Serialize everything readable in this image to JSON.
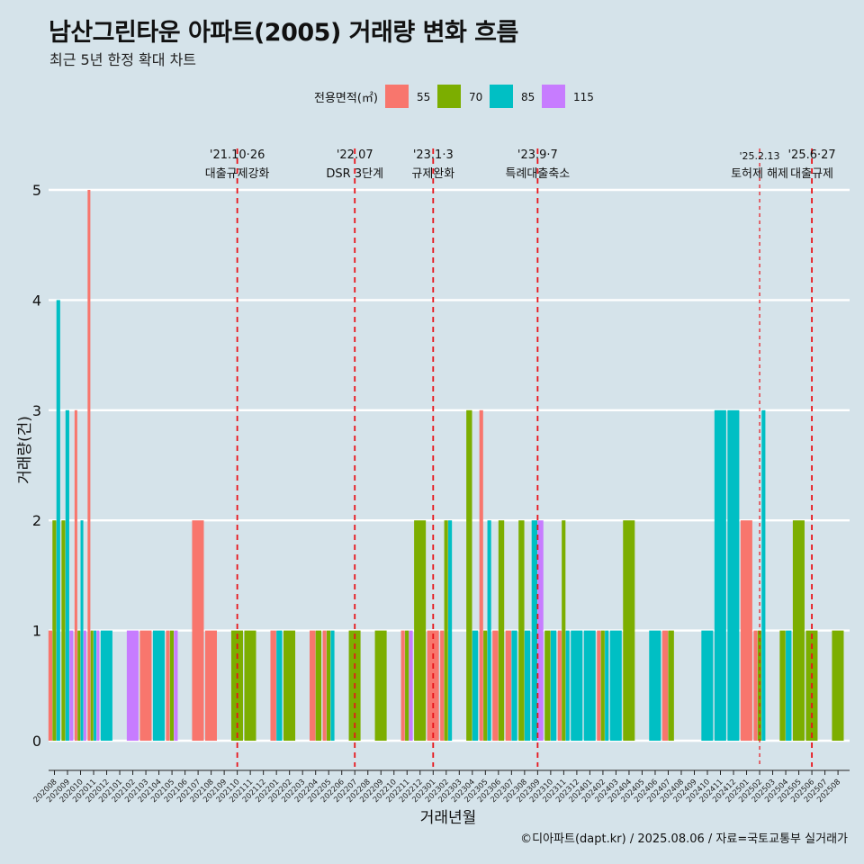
{
  "title": "남산그린타운 아파트(2005) 거래량 변화 흐름",
  "subtitle": "최근 5년 한정 확대 차트",
  "caption": "©디아파트(dapt.kr) / 2025.08.06 / 자료=국토교통부 실거래가",
  "chart_data": {
    "type": "bar",
    "xlabel": "거래년월",
    "ylabel": "거래량(건)",
    "ylim": [
      0,
      5
    ],
    "yticks": [
      0,
      1,
      2,
      3,
      4,
      5
    ],
    "legend_title": "전용면적(㎡)",
    "legend_position": "top",
    "grid": true,
    "categories": [
      "202008",
      "202009",
      "202010",
      "202011",
      "202012",
      "202101",
      "202102",
      "202103",
      "202104",
      "202105",
      "202106",
      "202107",
      "202108",
      "202109",
      "202110",
      "202111",
      "202112",
      "202201",
      "202202",
      "202203",
      "202204",
      "202205",
      "202206",
      "202207",
      "202208",
      "202209",
      "202210",
      "202211",
      "202212",
      "202301",
      "202302",
      "202303",
      "202304",
      "202305",
      "202306",
      "202307",
      "202308",
      "202309",
      "202310",
      "202311",
      "202312",
      "202401",
      "202402",
      "202403",
      "202404",
      "202405",
      "202406",
      "202407",
      "202408",
      "202409",
      "202410",
      "202411",
      "202412",
      "202501",
      "202502",
      "202503",
      "202504",
      "202505",
      "202506",
      "202507",
      "202508"
    ],
    "series": [
      {
        "name": "55",
        "color": "#F8766D",
        "values": [
          1,
          0,
          3,
          5,
          0,
          0,
          0,
          1,
          0,
          1,
          0,
          2,
          1,
          0,
          0,
          0,
          0,
          1,
          0,
          0,
          1,
          1,
          0,
          0,
          0,
          0,
          0,
          1,
          0,
          1,
          1,
          0,
          0,
          3,
          1,
          1,
          0,
          0,
          0,
          1,
          0,
          0,
          1,
          0,
          0,
          0,
          0,
          1,
          0,
          0,
          0,
          0,
          0,
          2,
          1,
          0,
          0,
          0,
          0,
          0,
          0
        ]
      },
      {
        "name": "70",
        "color": "#7CAE00",
        "values": [
          2,
          2,
          1,
          1,
          0,
          0,
          0,
          0,
          0,
          1,
          0,
          0,
          0,
          0,
          1,
          1,
          0,
          0,
          1,
          0,
          1,
          1,
          0,
          1,
          0,
          1,
          0,
          1,
          2,
          0,
          2,
          0,
          3,
          1,
          2,
          0,
          2,
          0,
          1,
          2,
          0,
          0,
          1,
          0,
          2,
          0,
          0,
          1,
          0,
          0,
          0,
          0,
          0,
          0,
          1,
          0,
          1,
          2,
          1,
          0,
          1
        ]
      },
      {
        "name": "85",
        "color": "#00BFC4",
        "values": [
          4,
          3,
          2,
          1,
          1,
          0,
          0,
          0,
          1,
          0,
          0,
          0,
          0,
          0,
          0,
          0,
          0,
          1,
          0,
          0,
          0,
          1,
          0,
          0,
          0,
          0,
          0,
          0,
          0,
          0,
          2,
          0,
          1,
          2,
          0,
          1,
          1,
          2,
          1,
          1,
          1,
          1,
          1,
          1,
          0,
          0,
          1,
          0,
          0,
          0,
          1,
          3,
          3,
          0,
          3,
          0,
          1,
          0,
          0,
          0,
          0
        ]
      },
      {
        "name": "115",
        "color": "#C77CFF",
        "values": [
          0,
          1,
          1,
          1,
          0,
          0,
          1,
          0,
          0,
          1,
          0,
          0,
          0,
          0,
          0,
          0,
          0,
          0,
          0,
          0,
          0,
          0,
          0,
          0,
          0,
          0,
          0,
          1,
          0,
          0,
          0,
          0,
          0,
          0,
          0,
          0,
          0,
          2,
          0,
          0,
          0,
          0,
          0,
          0,
          0,
          0,
          0,
          0,
          0,
          0,
          0,
          0,
          0,
          0,
          0,
          0,
          0,
          0,
          0,
          0,
          0
        ]
      }
    ],
    "annotations": [
      {
        "date": "'21.10·26",
        "label": "대출규제강화",
        "at": "202110"
      },
      {
        "date": "'22.07",
        "label": "DSR 3단계",
        "at": "202207"
      },
      {
        "date": "'23.1·3",
        "label": "규제완화",
        "at": "202301"
      },
      {
        "date": "'23.9·7",
        "label": "특례대출축소",
        "at": "202309"
      },
      {
        "date": "'25.2.13",
        "label": "토허제 해제",
        "at": "202502"
      },
      {
        "date": "'25.6·27",
        "label": "대출규제",
        "at": "202506"
      }
    ]
  }
}
